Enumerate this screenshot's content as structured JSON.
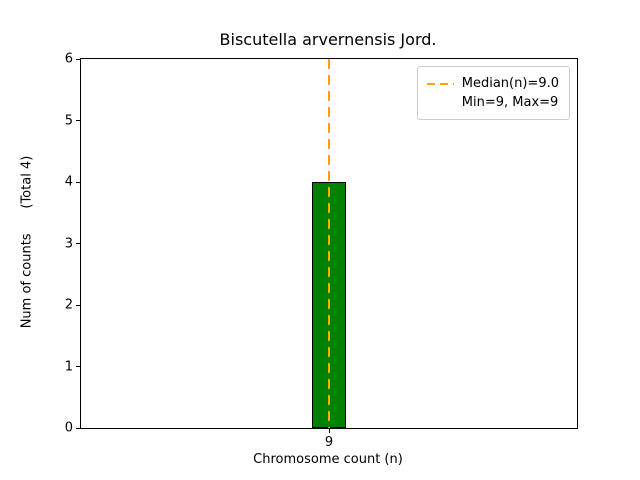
{
  "title": "Biscutella arvernensis Jord.",
  "axes": {
    "xlabel": "Chromosome count (n)",
    "ylabel": "Num of counts      (Total 4)",
    "xtick": "9"
  },
  "legend": {
    "items": [
      {
        "label": "Median(n)=9.0",
        "has_line": true
      },
      {
        "label": "Min=9, Max=9",
        "has_line": false
      }
    ],
    "position": "upper right"
  },
  "colors": {
    "bar_fill": "#008000",
    "bar_edge": "#000000",
    "median_line": "#ffa500",
    "axis": "#000000",
    "legend_border": "#cccccc",
    "background": "#ffffff"
  },
  "chart_data": {
    "type": "bar",
    "title": "Biscutella arvernensis Jord.",
    "xlabel": "Chromosome count (n)",
    "ylabel": "Num of counts (Total 4)",
    "categories": [
      9
    ],
    "values": [
      4
    ],
    "total_counts": 4,
    "ylim": [
      0,
      6
    ],
    "yticks": [
      0,
      1,
      2,
      3,
      4,
      5,
      6
    ],
    "median": 9.0,
    "min": 9,
    "max": 9,
    "legend_entries": [
      "Median(n)=9.0",
      "Min=9, Max=9"
    ],
    "legend_position": "upper right",
    "grid": false,
    "median_line_style": "dashed"
  }
}
